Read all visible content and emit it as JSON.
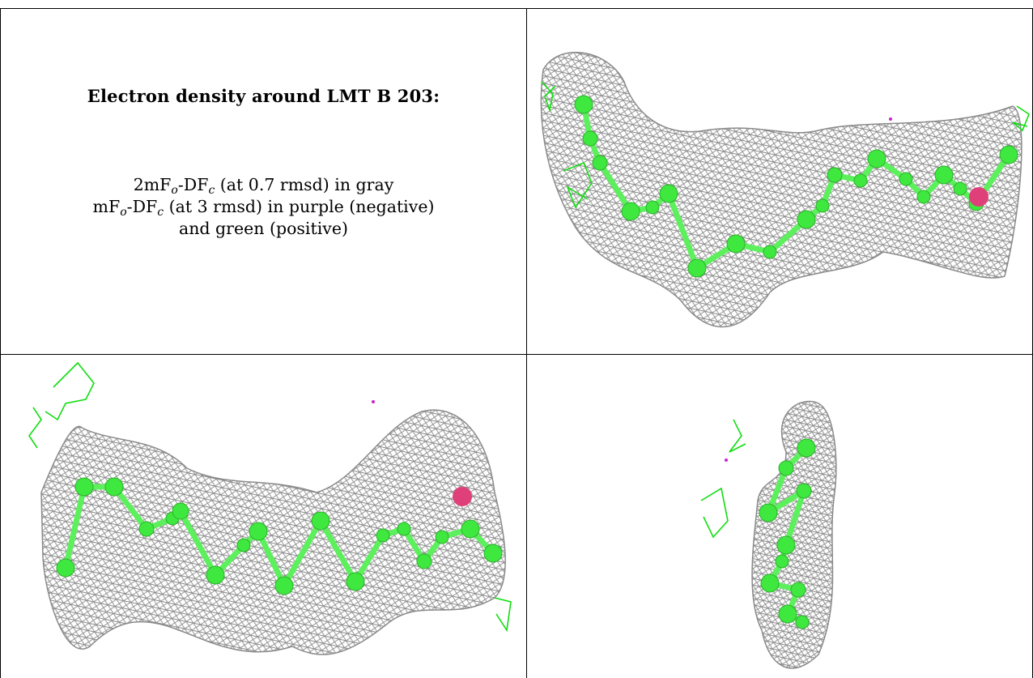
{
  "text_panel": {
    "title": "Electron density around LMT B 203:",
    "line1_pre": "2mF",
    "line1_sub1": "o",
    "line1_mid": "-DF",
    "line1_sub2": "c",
    "line1_post": " (at 0.7 rmsd) in gray",
    "line2_pre": "mF",
    "line2_sub1": "o",
    "line2_mid": "-DF",
    "line2_sub2": "c",
    "line2_post": " (at 3 rmsd) in purple (negative)",
    "line3": "and green (positive)"
  },
  "colors": {
    "mesh_gray": "#8a8a8a",
    "mesh_light": "#c8c8c8",
    "atom_green": "#3fe83f",
    "bond_green": "#5cf05c",
    "oxygen_pink": "#e0407a",
    "diff_green": "#11dd11",
    "diff_purple": "#cc22cc"
  },
  "panels": [
    {
      "name": "view-top-right",
      "icon": "electron-density-mesh"
    },
    {
      "name": "view-bottom-left",
      "icon": "electron-density-mesh"
    },
    {
      "name": "view-bottom-right",
      "icon": "electron-density-mesh"
    }
  ]
}
